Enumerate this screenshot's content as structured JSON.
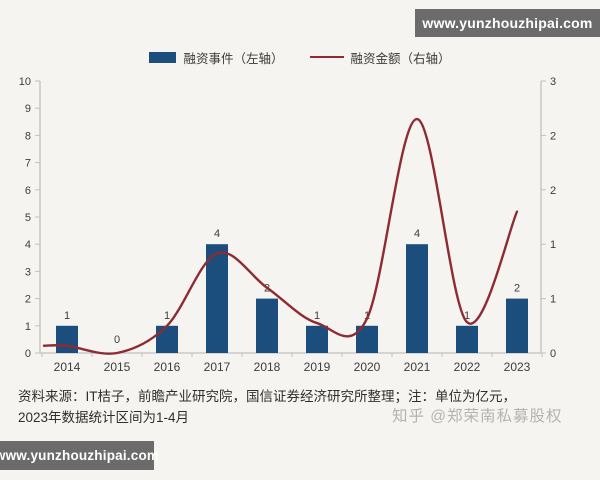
{
  "watermarks": {
    "top_right": "www.yunzhouzhipai.com",
    "bottom_left": "www.yunzhouzhipai.com",
    "overlay": "知乎 @郑荣南私募股权"
  },
  "legend": [
    {
      "label": "融资事件（左轴）",
      "type": "bar"
    },
    {
      "label": "融资金额（右轴）",
      "type": "line"
    }
  ],
  "chart_data": {
    "type": "bar+line",
    "title": "",
    "categories": [
      "2014",
      "2015",
      "2016",
      "2017",
      "2018",
      "2019",
      "2020",
      "2021",
      "2022",
      "2023"
    ],
    "series": [
      {
        "name": "融资事件（左轴）",
        "type": "bar",
        "axis": "left",
        "values": [
          1,
          0,
          1,
          4,
          2,
          1,
          1,
          4,
          1,
          2
        ],
        "labels": [
          "1",
          "0",
          "1",
          "4",
          "2",
          "1",
          "1",
          "4",
          "1",
          "2"
        ]
      },
      {
        "name": "融资金额（右轴）",
        "type": "line",
        "axis": "right",
        "estimated": true,
        "values": [
          0.08,
          0.0,
          0.3,
          1.1,
          0.72,
          0.33,
          0.38,
          2.58,
          0.34,
          1.56
        ]
      }
    ],
    "left_axis": {
      "min": 0,
      "max": 10,
      "tick_labels": [
        "0",
        "1",
        "2",
        "3",
        "4",
        "5",
        "6",
        "7",
        "8",
        "9",
        "10"
      ]
    },
    "right_axis": {
      "min": 0,
      "max": 3,
      "tick_labels": [
        "0",
        "1",
        "1",
        "2",
        "2",
        "3"
      ]
    },
    "grid": false,
    "legend_position": "top"
  },
  "footnote": {
    "line1": "资料来源：IT桔子，前瞻产业研究院，国信证券经济研究所整理；注：单位为亿元，",
    "line2": "2023年数据统计区间为1-4月"
  },
  "colors": {
    "bar": "#1B4E7C",
    "line": "#8E2B33",
    "axis": "#c3c1bd",
    "watermark_bg": "#6B6B6B",
    "watermark_text": "#FFFFFF"
  }
}
